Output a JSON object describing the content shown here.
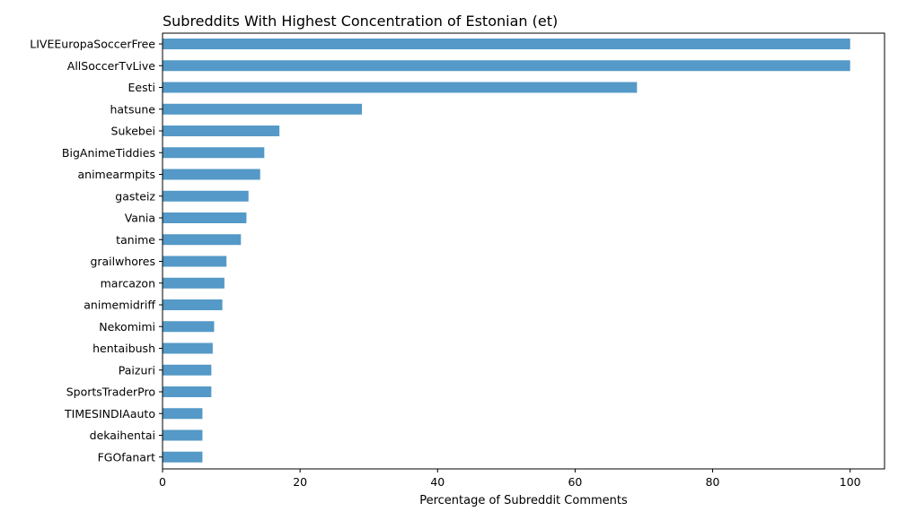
{
  "chart_data": {
    "type": "bar",
    "orientation": "horizontal",
    "title": "Subreddits With Highest Concentration of Estonian (et)",
    "xlabel": "Percentage of Subreddit Comments",
    "ylabel": "",
    "xlim": [
      0,
      105
    ],
    "xticks": [
      0,
      20,
      40,
      60,
      80,
      100
    ],
    "grid": false,
    "bar_color": "#5499c7",
    "categories": [
      "LIVEEuropaSoccerFree",
      "AllSoccerTvLive",
      "Eesti",
      "hatsune",
      "Sukebei",
      "BigAnimeTiddies",
      "animearmpits",
      "gasteiz",
      "Vania",
      "tanime",
      "grailwhores",
      "marcazon",
      "animemidriff",
      "Nekomimi",
      "hentaibush",
      "Paizuri",
      "SportsTraderPro",
      "TIMESINDIAauto",
      "dekaihentai",
      "FGOfanart"
    ],
    "values": [
      100,
      100,
      69,
      29,
      17,
      14.8,
      14.2,
      12.5,
      12.2,
      11.4,
      9.3,
      9.0,
      8.7,
      7.5,
      7.3,
      7.1,
      7.1,
      5.8,
      5.8,
      5.8
    ]
  }
}
